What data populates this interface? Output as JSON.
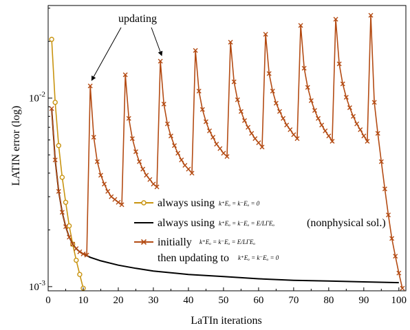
{
  "chart_data": {
    "type": "line",
    "title": "",
    "xlabel": "LaTIn iterations",
    "ylabel": "LATIN error (log)",
    "xlim": [
      0,
      102
    ],
    "ylim": [
      0.00095,
      0.031
    ],
    "yscale": "log",
    "x_ticks": [
      0,
      10,
      20,
      30,
      40,
      50,
      60,
      70,
      80,
      90,
      100
    ],
    "x_tick_labels": [
      "0",
      "10",
      "20",
      "30",
      "40",
      "50",
      "60",
      "70",
      "80",
      "90",
      "100"
    ],
    "y_ticks": [
      0.001,
      0.01
    ],
    "y_tick_labels": [
      {
        "base": "10",
        "exp": "-3"
      },
      {
        "base": "10",
        "exp": "-2"
      }
    ],
    "grid": false,
    "legend_position": "center-right",
    "annotation": {
      "text": "updating",
      "targets": [
        [
          12,
          0.0116
        ],
        [
          32,
          0.0157
        ]
      ]
    },
    "series": [
      {
        "label_main": "always using",
        "label_formula": "k⁺Eₒ = k⁻Eₒ = 0",
        "color": "#c8930f",
        "marker": "circle",
        "x": [
          1,
          2,
          3,
          4,
          5,
          6,
          7,
          8,
          9,
          10
        ],
        "y": [
          0.0205,
          0.0095,
          0.0056,
          0.0038,
          0.0028,
          0.0021,
          0.00168,
          0.00138,
          0.00116,
          0.00098
        ]
      },
      {
        "label_main": "always using",
        "label_formula": "k⁺Eₒ = k⁻Eₒ = E/LΓEₒ",
        "label_suffix": "(nonphysical sol.)",
        "color": "#000000",
        "marker": "none",
        "x": [
          1,
          2,
          3,
          4,
          5,
          6,
          7,
          8,
          9,
          10,
          12,
          15,
          20,
          25,
          30,
          40,
          50,
          60,
          70,
          80,
          90,
          100
        ],
        "y": [
          0.0088,
          0.0047,
          0.0032,
          0.00248,
          0.00208,
          0.00183,
          0.00168,
          0.00159,
          0.00153,
          0.00149,
          0.00143,
          0.00137,
          0.0013,
          0.00125,
          0.00121,
          0.00116,
          0.00113,
          0.0011,
          0.00108,
          0.00107,
          0.00106,
          0.00105
        ]
      },
      {
        "label_line1": "initially",
        "label_formula1": "k⁺Eₒ = k⁻Eₒ = E/LΓEₒ",
        "label_line2": "then updating to",
        "label_formula2": "k⁺Eₒ = k⁻Eₒ = 0",
        "color": "#b34a12",
        "marker": "x",
        "x": [
          1,
          2,
          3,
          4,
          5,
          6,
          7,
          8,
          9,
          10,
          11,
          12,
          13,
          14,
          15,
          16,
          17,
          18,
          19,
          20,
          21,
          22,
          23,
          24,
          25,
          26,
          27,
          28,
          29,
          30,
          31,
          32,
          33,
          34,
          35,
          36,
          37,
          38,
          39,
          40,
          41,
          42,
          43,
          44,
          45,
          46,
          47,
          48,
          49,
          50,
          51,
          52,
          53,
          54,
          55,
          56,
          57,
          58,
          59,
          60,
          61,
          62,
          63,
          64,
          65,
          66,
          67,
          68,
          69,
          70,
          71,
          72,
          73,
          74,
          75,
          76,
          77,
          78,
          79,
          80,
          81,
          82,
          83,
          84,
          85,
          86,
          87,
          88,
          89,
          90,
          91,
          92,
          93,
          94,
          95,
          96,
          97,
          98,
          99,
          100,
          101
        ],
        "y": [
          0.0088,
          0.0047,
          0.0032,
          0.00248,
          0.00208,
          0.00183,
          0.00168,
          0.00159,
          0.00153,
          0.00149,
          0.00147,
          0.0116,
          0.0062,
          0.0046,
          0.0039,
          0.0035,
          0.0032,
          0.003,
          0.0029,
          0.0028,
          0.00272,
          0.0133,
          0.0078,
          0.0061,
          0.0052,
          0.0046,
          0.0042,
          0.0039,
          0.0037,
          0.0035,
          0.00338,
          0.0157,
          0.0093,
          0.0073,
          0.0063,
          0.0056,
          0.0051,
          0.0047,
          0.0044,
          0.0042,
          0.004,
          0.0179,
          0.0109,
          0.0087,
          0.0075,
          0.0067,
          0.0062,
          0.0057,
          0.0054,
          0.0051,
          0.0049,
          0.0198,
          0.0122,
          0.0098,
          0.0085,
          0.0076,
          0.007,
          0.0065,
          0.0061,
          0.0058,
          0.0055,
          0.0218,
          0.0135,
          0.0109,
          0.0094,
          0.0085,
          0.0078,
          0.0072,
          0.0068,
          0.0064,
          0.0061,
          0.0243,
          0.0144,
          0.0114,
          0.0097,
          0.0086,
          0.0078,
          0.0072,
          0.0067,
          0.0063,
          0.0059,
          0.0262,
          0.0152,
          0.0119,
          0.0101,
          0.0089,
          0.008,
          0.0073,
          0.0068,
          0.0063,
          0.0059,
          0.0275,
          0.0095,
          0.0065,
          0.0046,
          0.0033,
          0.0024,
          0.0018,
          0.00145,
          0.00118,
          0.00098
        ]
      }
    ]
  }
}
